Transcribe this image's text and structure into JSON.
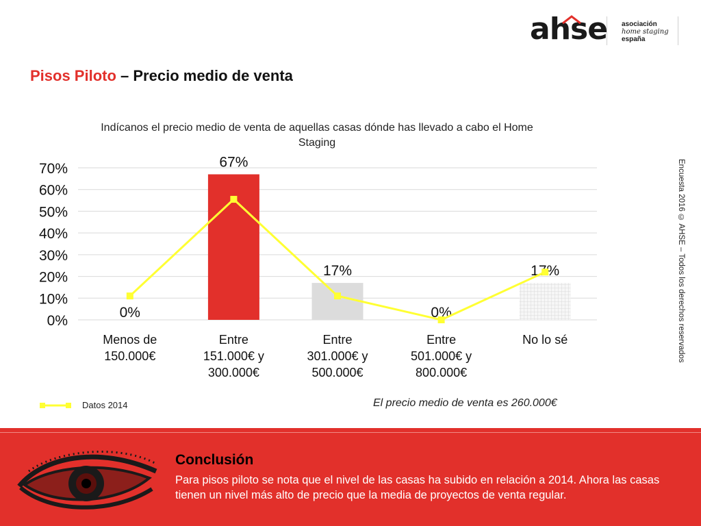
{
  "logo": {
    "brand": "ahse",
    "assoc_line1": "asociación",
    "assoc_line2": "home staging",
    "assoc_line3": "españa"
  },
  "title": {
    "accent": "Pisos Piloto",
    "rest": " – Precio medio de venta"
  },
  "side_note": "Encuesta 2016 © AHSE – Todos los derechos reservados",
  "chart_data": {
    "type": "bar",
    "title": "Indícanos el precio medio de venta de aquellas casas dónde has llevado a cabo el Home Staging",
    "categories": [
      [
        "Menos de",
        "150.000€"
      ],
      [
        "Entre",
        "151.000€ y",
        "300.000€"
      ],
      [
        "Entre",
        "301.000€ y",
        "500.000€"
      ],
      [
        "Entre",
        "501.000€ y",
        "800.000€"
      ],
      [
        "No lo sé"
      ]
    ],
    "series": [
      {
        "values": [
          0,
          67,
          17,
          0,
          17
        ],
        "labels": [
          "0%",
          "67%",
          "17%",
          "0%",
          "17%"
        ],
        "colors": [
          "#e2302b",
          "#e2302b",
          "#dcdcdc",
          "#e2302b",
          "#f2f2f2"
        ]
      },
      {
        "name": "Datos 2014",
        "type": "line",
        "values": [
          11,
          55.5,
          11,
          0,
          22
        ],
        "color": "#ffff33"
      }
    ],
    "yticks": [
      "0%",
      "10%",
      "20%",
      "30%",
      "40%",
      "50%",
      "60%",
      "70%"
    ],
    "ylim": [
      0,
      70
    ],
    "grid": true,
    "legend_position": "bottom-left"
  },
  "average_note": "El precio medio de venta es 260.000€",
  "conclusion": {
    "title": "Conclusión",
    "text": "Para pisos piloto se nota que el nivel de las casas ha subido en relación a 2014. Ahora las casas tienen un nivel más alto de precio que la media de proyectos de venta regular."
  }
}
